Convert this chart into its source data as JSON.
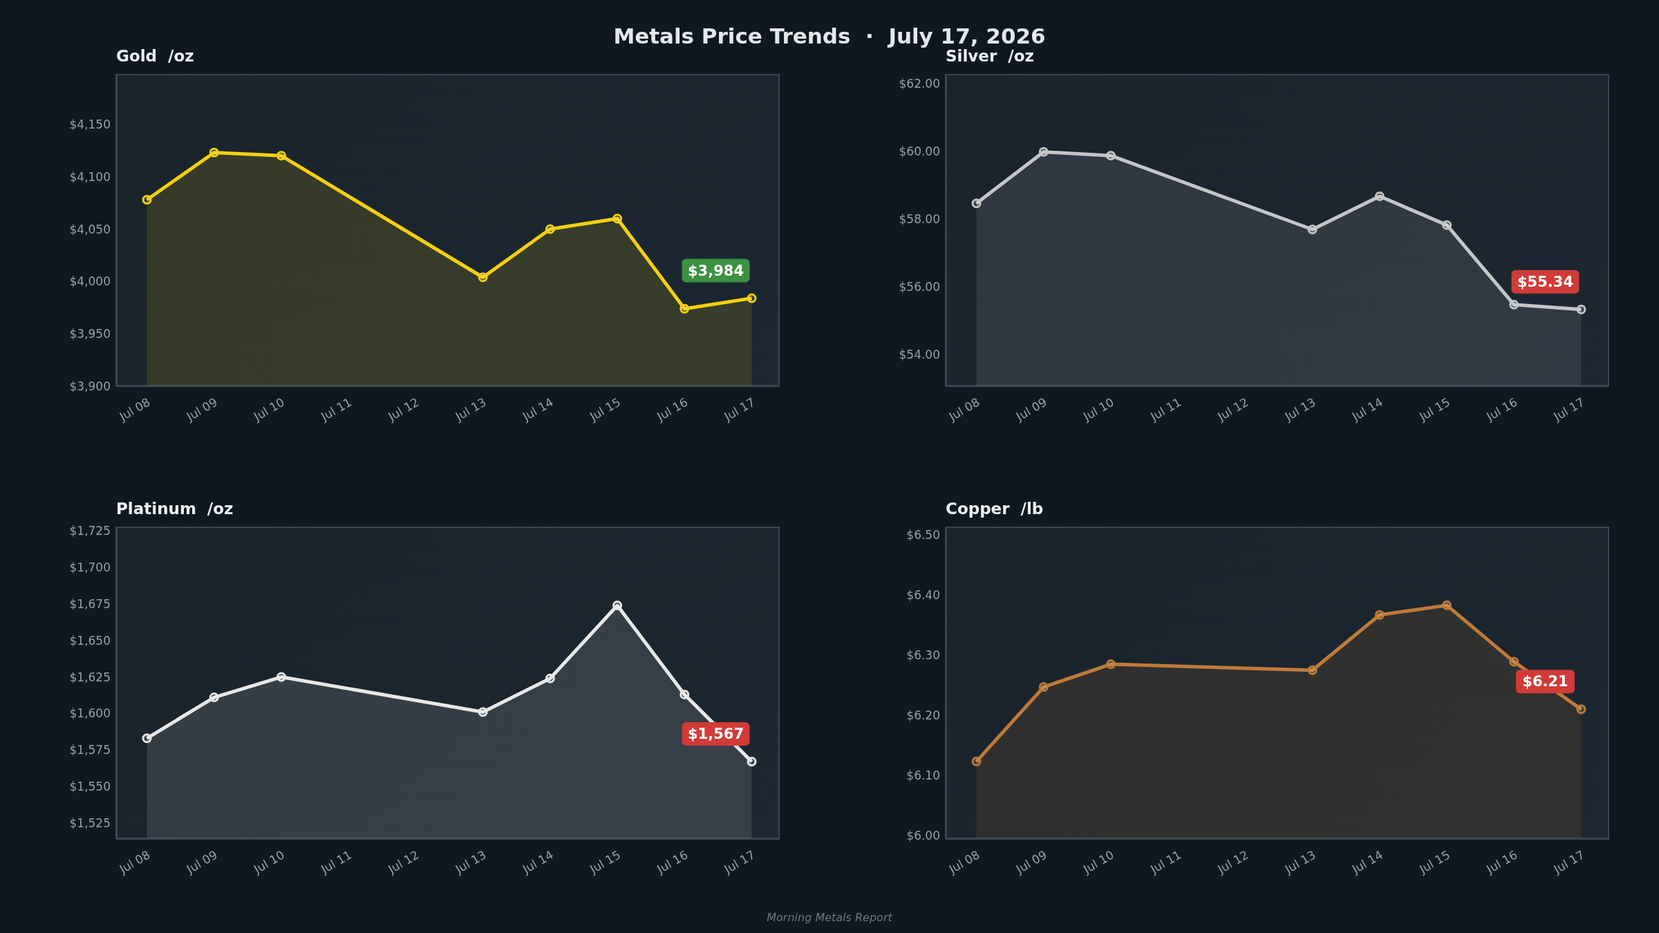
{
  "chart_data": [
    {
      "type": "other",
      "title": "Metals Price Trends  ·  July 17, 2026",
      "annotations": [
        "Morning Metals Report"
      ]
    },
    {
      "type": "area",
      "title": "Gold  /oz",
      "x": [
        "2026-07-08",
        "2026-07-09",
        "2026-07-10",
        "2026-07-13",
        "2026-07-14",
        "2026-07-15",
        "2026-07-16",
        "2026-07-17"
      ],
      "series": [
        {
          "color": "#f5cf0f",
          "values": [
            4078,
            4123,
            4120,
            4004,
            4050,
            4060,
            3974,
            3984
          ],
          "value_labels": [
            null,
            null,
            null,
            null,
            null,
            null,
            null,
            "$3,984"
          ]
        }
      ],
      "xlim": [
        "2026-07-07T13:00",
        "2026-07-17T10:00"
      ],
      "xticks": [
        {
          "value": "2026-07-08",
          "label": "Jul 08"
        },
        {
          "value": "2026-07-09",
          "label": "Jul 09"
        },
        {
          "value": "2026-07-10",
          "label": "Jul 10"
        },
        {
          "value": "2026-07-11",
          "label": "Jul 11"
        },
        {
          "value": "2026-07-12",
          "label": "Jul 12"
        },
        {
          "value": "2026-07-13",
          "label": "Jul 13"
        },
        {
          "value": "2026-07-14",
          "label": "Jul 14"
        },
        {
          "value": "2026-07-15",
          "label": "Jul 15"
        },
        {
          "value": "2026-07-16",
          "label": "Jul 16"
        },
        {
          "value": "2026-07-17",
          "label": "Jul 17"
        }
      ],
      "ylim": [
        3900,
        4198
      ],
      "yticks": [
        {
          "value": 3900,
          "label": "$3,900"
        },
        {
          "value": 3950,
          "label": "$3,950"
        },
        {
          "value": 4000,
          "label": "$4,000"
        },
        {
          "value": 4050,
          "label": "$4,050"
        },
        {
          "value": 4100,
          "label": "$4,100"
        },
        {
          "value": 4150,
          "label": "$4,150"
        }
      ],
      "marker": "circle"
    },
    {
      "type": "area",
      "title": "Silver  /oz",
      "x": [
        "2026-07-08",
        "2026-07-09",
        "2026-07-10",
        "2026-07-13",
        "2026-07-14",
        "2026-07-15",
        "2026-07-16",
        "2026-07-17"
      ],
      "series": [
        {
          "color": "#c3c5c7",
          "values": [
            58.47,
            59.99,
            59.88,
            57.7,
            58.68,
            57.83,
            55.48,
            55.34
          ],
          "value_labels": [
            null,
            null,
            null,
            null,
            null,
            null,
            null,
            "$55.34"
          ]
        }
      ],
      "xlim": [
        "2026-07-07T13:00",
        "2026-07-17T10:00"
      ],
      "xticks": [
        {
          "value": "2026-07-08",
          "label": "Jul 08"
        },
        {
          "value": "2026-07-09",
          "label": "Jul 09"
        },
        {
          "value": "2026-07-10",
          "label": "Jul 10"
        },
        {
          "value": "2026-07-11",
          "label": "Jul 11"
        },
        {
          "value": "2026-07-12",
          "label": "Jul 12"
        },
        {
          "value": "2026-07-13",
          "label": "Jul 13"
        },
        {
          "value": "2026-07-14",
          "label": "Jul 14"
        },
        {
          "value": "2026-07-15",
          "label": "Jul 15"
        },
        {
          "value": "2026-07-16",
          "label": "Jul 16"
        },
        {
          "value": "2026-07-17",
          "label": "Jul 17"
        }
      ],
      "ylim": [
        53.07,
        62.29
      ],
      "yticks": [
        {
          "value": 54,
          "label": "$54.00"
        },
        {
          "value": 56,
          "label": "$56.00"
        },
        {
          "value": 58,
          "label": "$58.00"
        },
        {
          "value": 60,
          "label": "$60.00"
        },
        {
          "value": 62,
          "label": "$62.00"
        }
      ],
      "marker": "circle"
    },
    {
      "type": "area",
      "title": "Platinum  /oz",
      "x": [
        "2026-07-08",
        "2026-07-09",
        "2026-07-10",
        "2026-07-13",
        "2026-07-14",
        "2026-07-15",
        "2026-07-16",
        "2026-07-17"
      ],
      "series": [
        {
          "color": "#e8e8e8",
          "values": [
            1583,
            1611,
            1625,
            1601,
            1624,
            1674,
            1613,
            1567
          ],
          "value_labels": [
            null,
            null,
            null,
            null,
            null,
            null,
            null,
            "$1,567"
          ]
        }
      ],
      "xlim": [
        "2026-07-07T13:00",
        "2026-07-17T10:00"
      ],
      "xticks": [
        {
          "value": "2026-07-08",
          "label": "Jul 08"
        },
        {
          "value": "2026-07-09",
          "label": "Jul 09"
        },
        {
          "value": "2026-07-10",
          "label": "Jul 10"
        },
        {
          "value": "2026-07-11",
          "label": "Jul 11"
        },
        {
          "value": "2026-07-12",
          "label": "Jul 12"
        },
        {
          "value": "2026-07-13",
          "label": "Jul 13"
        },
        {
          "value": "2026-07-14",
          "label": "Jul 14"
        },
        {
          "value": "2026-07-15",
          "label": "Jul 15"
        },
        {
          "value": "2026-07-16",
          "label": "Jul 16"
        },
        {
          "value": "2026-07-17",
          "label": "Jul 17"
        }
      ],
      "ylim": [
        1514,
        1728
      ],
      "yticks": [
        {
          "value": 1525,
          "label": "$1,525"
        },
        {
          "value": 1550,
          "label": "$1,550"
        },
        {
          "value": 1575,
          "label": "$1,575"
        },
        {
          "value": 1600,
          "label": "$1,600"
        },
        {
          "value": 1625,
          "label": "$1,625"
        },
        {
          "value": 1650,
          "label": "$1,650"
        },
        {
          "value": 1675,
          "label": "$1,675"
        },
        {
          "value": 1700,
          "label": "$1,700"
        },
        {
          "value": 1725,
          "label": "$1,725"
        }
      ],
      "marker": "circle"
    },
    {
      "type": "area",
      "title": "Copper  /lb",
      "x": [
        "2026-07-08",
        "2026-07-09",
        "2026-07-10",
        "2026-07-13",
        "2026-07-14",
        "2026-07-15",
        "2026-07-16",
        "2026-07-17"
      ],
      "series": [
        {
          "color": "#c07a38",
          "values": [
            6.123,
            6.247,
            6.285,
            6.275,
            6.367,
            6.383,
            6.289,
            6.21
          ],
          "value_labels": [
            null,
            null,
            null,
            null,
            null,
            null,
            null,
            "$6.21"
          ]
        }
      ],
      "xlim": [
        "2026-07-07T13:00",
        "2026-07-17T10:00"
      ],
      "xticks": [
        {
          "value": "2026-07-08",
          "label": "Jul 08"
        },
        {
          "value": "2026-07-09",
          "label": "Jul 09"
        },
        {
          "value": "2026-07-10",
          "label": "Jul 10"
        },
        {
          "value": "2026-07-11",
          "label": "Jul 11"
        },
        {
          "value": "2026-07-12",
          "label": "Jul 12"
        },
        {
          "value": "2026-07-13",
          "label": "Jul 13"
        },
        {
          "value": "2026-07-14",
          "label": "Jul 14"
        },
        {
          "value": "2026-07-15",
          "label": "Jul 15"
        },
        {
          "value": "2026-07-16",
          "label": "Jul 16"
        },
        {
          "value": "2026-07-17",
          "label": "Jul 17"
        }
      ],
      "ylim": [
        5.994,
        6.514
      ],
      "yticks": [
        {
          "value": 6,
          "label": "$6.00"
        },
        {
          "value": 6.1,
          "label": "$6.10"
        },
        {
          "value": 6.2,
          "label": "$6.20"
        },
        {
          "value": 6.3,
          "label": "$6.30"
        },
        {
          "value": 6.4,
          "label": "$6.40"
        },
        {
          "value": 6.5,
          "label": "$6.50"
        }
      ],
      "marker": "circle"
    }
  ]
}
